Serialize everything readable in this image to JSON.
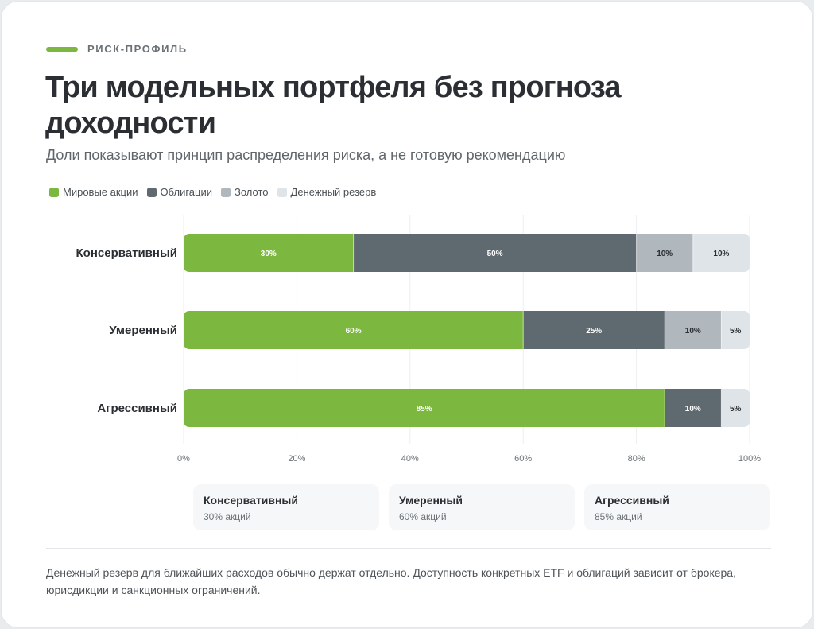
{
  "eyebrow": "РИСК-ПРОФИЛЬ",
  "title": "Три модельных портфеля без прогноза доходности",
  "subtitle": "Доли показывают принцип распределения риска, а не готовую рекомендацию",
  "colors": {
    "accent": "#7cb83f",
    "stocks": "#7cb83f",
    "bonds": "#5f6a70",
    "gold": "#b0b8be",
    "cash": "#dfe4e8"
  },
  "chart_data": {
    "type": "bar",
    "orientation": "horizontal",
    "stacked": true,
    "categories": [
      "Консервативный",
      "Умеренный",
      "Агрессивный"
    ],
    "series": [
      {
        "name": "Мировые акции",
        "color": "#7cb83f",
        "values": [
          30,
          60,
          85
        ]
      },
      {
        "name": "Облигации",
        "color": "#5f6a70",
        "values": [
          50,
          25,
          10
        ]
      },
      {
        "name": "Золото",
        "color": "#b0b8be",
        "values": [
          10,
          10,
          0
        ]
      },
      {
        "name": "Денежный резерв",
        "color": "#dfe4e8",
        "values": [
          10,
          5,
          5
        ]
      }
    ],
    "xlim": [
      0,
      100
    ],
    "xticks": [
      "0%",
      "20%",
      "40%",
      "60%",
      "80%",
      "100%"
    ],
    "grid": true,
    "legend": "top-left"
  },
  "summary_cards": [
    {
      "title": "Консервативный",
      "sub": "30% акций"
    },
    {
      "title": "Умеренный",
      "sub": "60% акций"
    },
    {
      "title": "Агрессивный",
      "sub": "85% акций"
    }
  ],
  "footnote": "Денежный резерв для ближайших расходов обычно держат отдельно. Доступность конкретных ETF и облигаций зависит от брокера, юрисдикции и санкционных ограничений."
}
